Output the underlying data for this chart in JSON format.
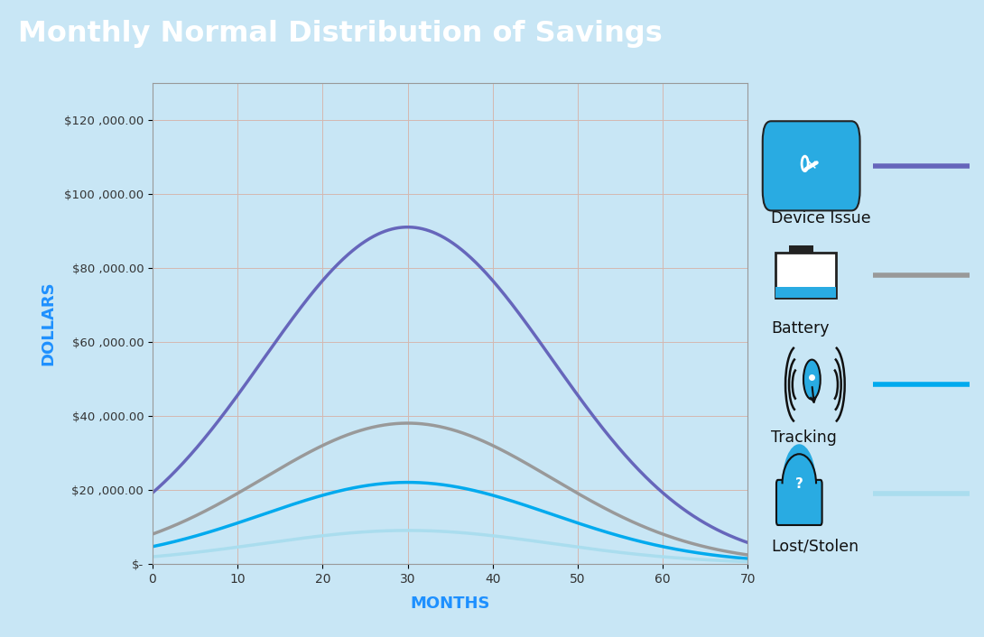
{
  "title": "Monthly Normal Distribution of Savings",
  "title_bg_color": "#29ABE2",
  "title_text_color": "#FFFFFF",
  "bg_color": "#C8E6F5",
  "plot_bg_color": "#C8E6F5",
  "xlabel": "MONTHS",
  "ylabel": "DOLLARS",
  "xlabel_color": "#1E90FF",
  "ylabel_color": "#1E90FF",
  "x_min": 0,
  "x_max": 70,
  "y_min": 0,
  "y_max": 130000,
  "x_ticks": [
    0,
    10,
    20,
    30,
    40,
    50,
    60,
    70
  ],
  "y_ticks": [
    0,
    20000,
    40000,
    60000,
    80000,
    100000,
    120000
  ],
  "y_tick_labels": [
    "$-",
    "$20 ,000.00",
    "$40 ,000.00",
    "$60 ,000.00",
    "$80 ,000.00",
    "$100 ,000.00",
    "$120 ,000.00"
  ],
  "grid_color": "#D4B8B0",
  "series": [
    {
      "name": "Device Issue",
      "color": "#6666BB",
      "linewidth": 2.5,
      "peak": 91000,
      "mu": 30,
      "sigma": 17
    },
    {
      "name": "Battery",
      "color": "#999999",
      "linewidth": 2.5,
      "peak": 38000,
      "mu": 30,
      "sigma": 17
    },
    {
      "name": "Tracking",
      "color": "#00AAEE",
      "linewidth": 2.5,
      "peak": 22000,
      "mu": 30,
      "sigma": 17
    },
    {
      "name": "Lost/Stolen",
      "color": "#AADDEE",
      "linewidth": 2.5,
      "peak": 9000,
      "mu": 30,
      "sigma": 17
    }
  ],
  "legend": [
    {
      "name": "Device Issue",
      "line_color": "#6666BB"
    },
    {
      "name": "Battery",
      "line_color": "#999999"
    },
    {
      "name": "Tracking",
      "line_color": "#00AAEE"
    },
    {
      "name": "Lost/Stolen",
      "line_color": "#AADDEE"
    }
  ]
}
